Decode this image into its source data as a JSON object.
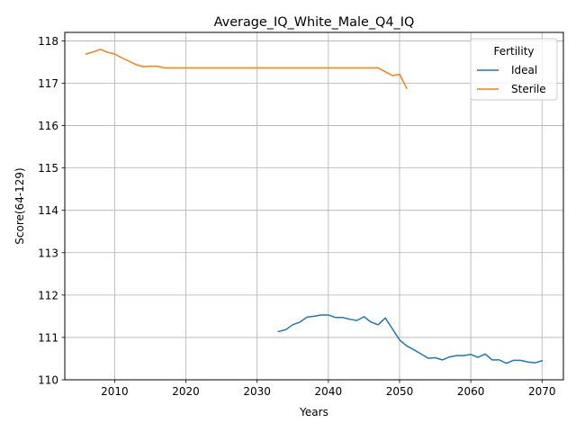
{
  "chart_data": {
    "type": "line",
    "title": "Average_IQ_White_Male_Q4_IQ",
    "xlabel": "Years",
    "ylabel": "Score(64-129)",
    "xlim": [
      2003,
      2073
    ],
    "ylim": [
      110,
      118.2
    ],
    "x_ticks": [
      2010,
      2020,
      2030,
      2040,
      2050,
      2060,
      2070
    ],
    "y_ticks": [
      110,
      111,
      112,
      113,
      114,
      115,
      116,
      117,
      118
    ],
    "grid": true,
    "legend": {
      "title": "Fertility",
      "position": "top-right"
    },
    "series": [
      {
        "name": "Ideal",
        "color": "#1f77b4",
        "x": [
          2033,
          2034,
          2035,
          2036,
          2037,
          2038,
          2039,
          2040,
          2041,
          2042,
          2043,
          2044,
          2045,
          2046,
          2047,
          2048,
          2049,
          2050,
          2051,
          2052,
          2053,
          2054,
          2055,
          2056,
          2057,
          2058,
          2059,
          2060,
          2061,
          2062,
          2063,
          2064,
          2065,
          2066,
          2067,
          2068,
          2069,
          2070
        ],
        "y": [
          111.14,
          111.18,
          111.3,
          111.36,
          111.48,
          111.5,
          111.53,
          111.53,
          111.47,
          111.47,
          111.43,
          111.4,
          111.49,
          111.36,
          111.3,
          111.46,
          111.2,
          110.94,
          110.8,
          110.71,
          110.61,
          110.51,
          110.52,
          110.47,
          110.54,
          110.57,
          110.57,
          110.6,
          110.53,
          110.61,
          110.47,
          110.47,
          110.39,
          110.46,
          110.46,
          110.42,
          110.4,
          110.45
        ]
      },
      {
        "name": "Sterile",
        "color": "#ff7f0e",
        "x": [
          2006,
          2007,
          2008,
          2009,
          2010,
          2011,
          2012,
          2013,
          2014,
          2015,
          2016,
          2017,
          2018,
          2019,
          2020,
          2021,
          2022,
          2023,
          2024,
          2025,
          2026,
          2027,
          2028,
          2029,
          2030,
          2031,
          2032,
          2033,
          2034,
          2035,
          2036,
          2037,
          2038,
          2039,
          2040,
          2041,
          2042,
          2043,
          2044,
          2045,
          2046,
          2047,
          2048,
          2049,
          2050,
          2051
        ],
        "y": [
          117.69,
          117.74,
          117.8,
          117.73,
          117.69,
          117.6,
          117.52,
          117.44,
          117.39,
          117.4,
          117.4,
          117.36,
          117.36,
          117.36,
          117.36,
          117.36,
          117.36,
          117.36,
          117.36,
          117.36,
          117.36,
          117.36,
          117.36,
          117.36,
          117.36,
          117.36,
          117.36,
          117.36,
          117.36,
          117.36,
          117.36,
          117.36,
          117.36,
          117.36,
          117.36,
          117.36,
          117.36,
          117.36,
          117.36,
          117.36,
          117.36,
          117.36,
          117.27,
          117.18,
          117.21,
          116.88
        ]
      }
    ]
  }
}
